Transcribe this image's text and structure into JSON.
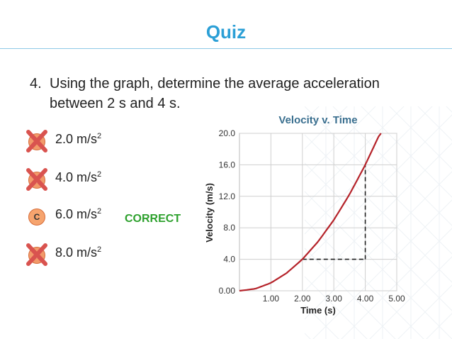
{
  "slide": {
    "title": "Quiz",
    "question_number": "4.",
    "question_text": "Using the graph, determine the average acceleration between 2 s and 4 s.",
    "correct_label": "CORRECT",
    "options": [
      {
        "letter": "A",
        "value": "2.0 m/s",
        "exp": "2",
        "crossed": true
      },
      {
        "letter": "B",
        "value": "4.0 m/s",
        "exp": "2",
        "crossed": true
      },
      {
        "letter": "C",
        "value": "6.0 m/s",
        "exp": "2",
        "crossed": false
      },
      {
        "letter": "D",
        "value": "8.0 m/s",
        "exp": "2",
        "crossed": true
      }
    ],
    "colors": {
      "title": "#2b9fd6",
      "curve": "#b5232a",
      "chart_title": "#3a6f8f",
      "correct": "#2ea12e",
      "badge": "#f29a6a",
      "cross": "#d9534f"
    }
  },
  "chart_data": {
    "type": "line",
    "title": "Velocity v. Time",
    "xlabel": "Time (s)",
    "ylabel": "Velocity (m/s)",
    "xlim": [
      0,
      5
    ],
    "ylim": [
      0,
      20
    ],
    "x_ticks": [
      "1.00",
      "2.00",
      "3.00",
      "4.00",
      "5.00"
    ],
    "y_ticks": [
      "0.00",
      "4.0",
      "8.0",
      "12.0",
      "16.0",
      "20.0"
    ],
    "grid": true,
    "series": [
      {
        "x": [
          0,
          0.5,
          1,
          1.5,
          2,
          2.5,
          3,
          3.5,
          4,
          4.5,
          4.5
        ],
        "y": [
          0,
          0.25,
          1,
          2.25,
          4,
          6.25,
          9,
          12.25,
          16,
          20.25,
          20
        ]
      }
    ],
    "guides": [
      {
        "from": [
          2,
          4
        ],
        "to": [
          4,
          4
        ]
      },
      {
        "from": [
          4,
          4
        ],
        "to": [
          4,
          16
        ]
      }
    ]
  }
}
